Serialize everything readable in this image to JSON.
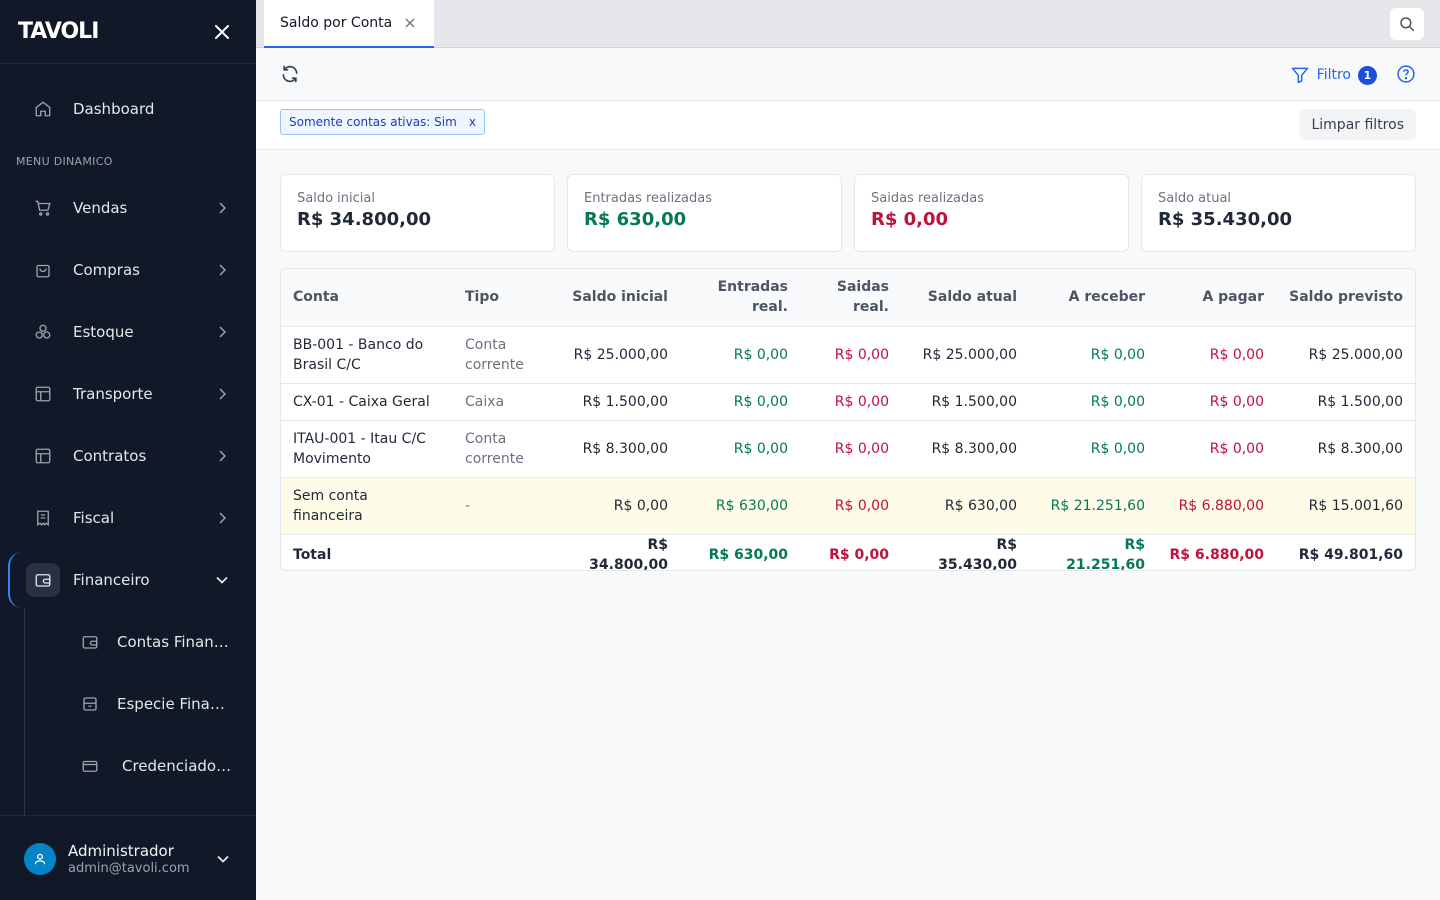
{
  "sidebar": {
    "logo": "TAVOLI",
    "section_label": "MENU DINAMICO",
    "dashboard": "Dashboard",
    "items": [
      "Vendas",
      "Compras",
      "Estoque",
      "Transporte",
      "Contratos",
      "Fiscal",
      "Financeiro"
    ],
    "subitems": [
      "Contas Financ...",
      "Especie Finan...",
      "Credenciador..."
    ],
    "user": {
      "name": "Administrador",
      "email": "admin@tavoli.com"
    }
  },
  "tabs": [
    {
      "label": "Saldo por Conta"
    }
  ],
  "toolbar": {
    "filter_label": "Filtro",
    "filter_count": "1"
  },
  "filters": {
    "chip": "Somente contas ativas: Sim",
    "chip_remove": "x",
    "clear_label": "Limpar filtros"
  },
  "cards": [
    {
      "label": "Saldo inicial",
      "value": "R$ 34.800,00",
      "color": "#1f2937"
    },
    {
      "label": "Entradas realizadas",
      "value": "R$ 630,00",
      "color": "#047857"
    },
    {
      "label": "Saidas realizadas",
      "value": "R$ 0,00",
      "color": "#be123c"
    },
    {
      "label": "Saldo atual",
      "value": "R$ 35.430,00",
      "color": "#1f2937"
    }
  ],
  "table": {
    "headers": [
      "Conta",
      "Tipo",
      "Saldo inicial",
      "Entradas real.",
      "Saidas real.",
      "Saldo atual",
      "A receber",
      "A pagar",
      "Saldo previsto"
    ],
    "rows": [
      [
        "BB-001 - Banco do Brasil C/C",
        "Conta corrente",
        "R$ 25.000,00",
        "R$ 0,00",
        "R$ 0,00",
        "R$ 25.000,00",
        "R$ 0,00",
        "R$ 0,00",
        "R$ 25.000,00"
      ],
      [
        "CX-01 - Caixa Geral",
        "Caixa",
        "R$ 1.500,00",
        "R$ 0,00",
        "R$ 0,00",
        "R$ 1.500,00",
        "R$ 0,00",
        "R$ 0,00",
        "R$ 1.500,00"
      ],
      [
        "ITAU-001 - Itau C/C Movimento",
        "Conta corrente",
        "R$ 8.300,00",
        "R$ 0,00",
        "R$ 0,00",
        "R$ 8.300,00",
        "R$ 0,00",
        "R$ 0,00",
        "R$ 8.300,00"
      ],
      [
        "Sem conta financeira",
        "-",
        "R$ 0,00",
        "R$ 630,00",
        "R$ 0,00",
        "R$ 630,00",
        "R$ 21.251,60",
        "R$ 6.880,00",
        "R$ 15.001,60"
      ]
    ],
    "total": [
      "Total",
      "",
      "R$ 34.800,00",
      "R$ 630,00",
      "R$ 0,00",
      "R$ 35.430,00",
      "R$ 21.251,60",
      "R$ 6.880,00",
      "R$ 49.801,60"
    ]
  },
  "colors": {
    "sidebar_bg": "#111827",
    "accent": "#2563eb",
    "positive": "#047857",
    "negative": "#be123c"
  }
}
